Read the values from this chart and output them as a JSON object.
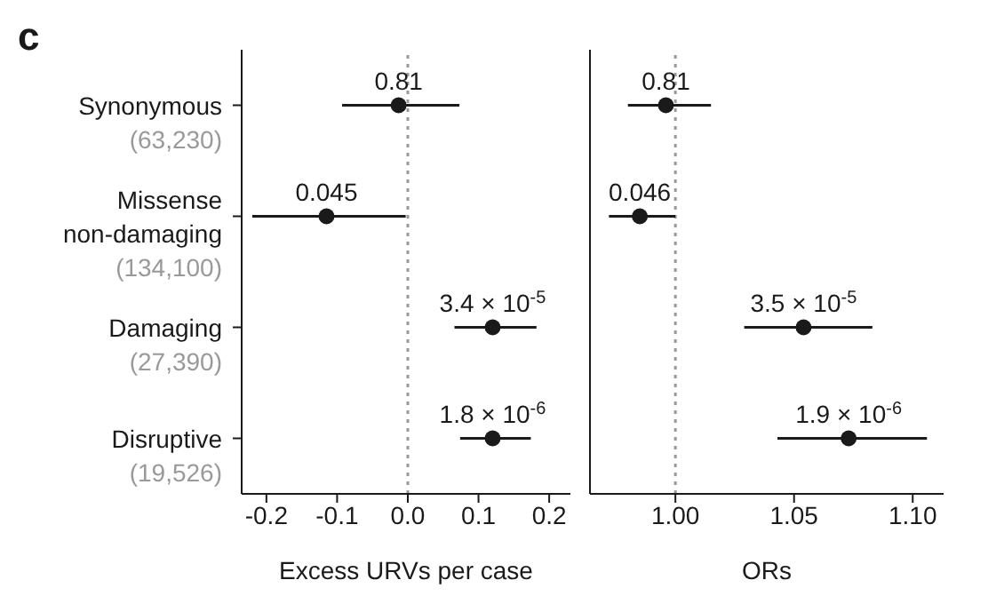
{
  "chart_data": [
    {
      "type": "scatter",
      "title": "c",
      "orientation": "horizontal",
      "xlabel": "Excess URVs per case",
      "categories": [
        "Synonymous\n(63,230)",
        "Missense\nnon-damaging\n(134,100)",
        "Damaging\n(27,390)",
        "Disruptive\n(19,526)"
      ],
      "series": [
        {
          "color": "#1a1a1a",
          "values": [
            -0.013,
            -0.115,
            0.12,
            0.12
          ],
          "errors": [
            [
              -0.093,
              0.073
            ],
            [
              -0.22,
              -0.003
            ],
            [
              0.066,
              0.182
            ],
            [
              0.074,
              0.174
            ]
          ]
        }
      ],
      "annotations": [
        "0.81",
        "0.045",
        "3.4 × 10$^{-5}$",
        "1.8 × 10$^{-6}$"
      ],
      "xlim": [
        -0.235,
        0.23
      ],
      "xticks": [
        -0.2,
        -0.1,
        {
          "value": 0,
          "label": "0.0"
        },
        0.1,
        0.2
      ],
      "marker": "circle",
      "ref_lines": [
        {
          "axis": "x",
          "value": 0,
          "color": "#999999",
          "line_style": "dotted"
        }
      ]
    },
    {
      "type": "scatter",
      "orientation": "horizontal",
      "xlabel": "ORs",
      "tick_labels": "x",
      "categories": [
        null,
        null,
        null,
        null
      ],
      "series": [
        {
          "color": "#1a1a1a",
          "values": [
            0.996,
            0.985,
            1.054,
            1.073
          ],
          "errors": [
            [
              0.98,
              1.015
            ],
            [
              0.972,
              1.0
            ],
            [
              1.029,
              1.083
            ],
            [
              1.043,
              1.106
            ]
          ]
        }
      ],
      "annotations": [
        "0.81",
        "0.046",
        "3.5 × 10$^{-5}$",
        "1.9 × 10$^{-6}$"
      ],
      "xlim": [
        0.964,
        1.113
      ],
      "xticks": [
        {
          "value": 1,
          "label": "1.00"
        },
        1.05,
        {
          "value": 1.1,
          "label": "1.10"
        }
      ],
      "marker": "circle",
      "ref_lines": [
        {
          "axis": "x",
          "value": 1,
          "color": "#999999",
          "line_style": "dotted"
        }
      ]
    }
  ]
}
